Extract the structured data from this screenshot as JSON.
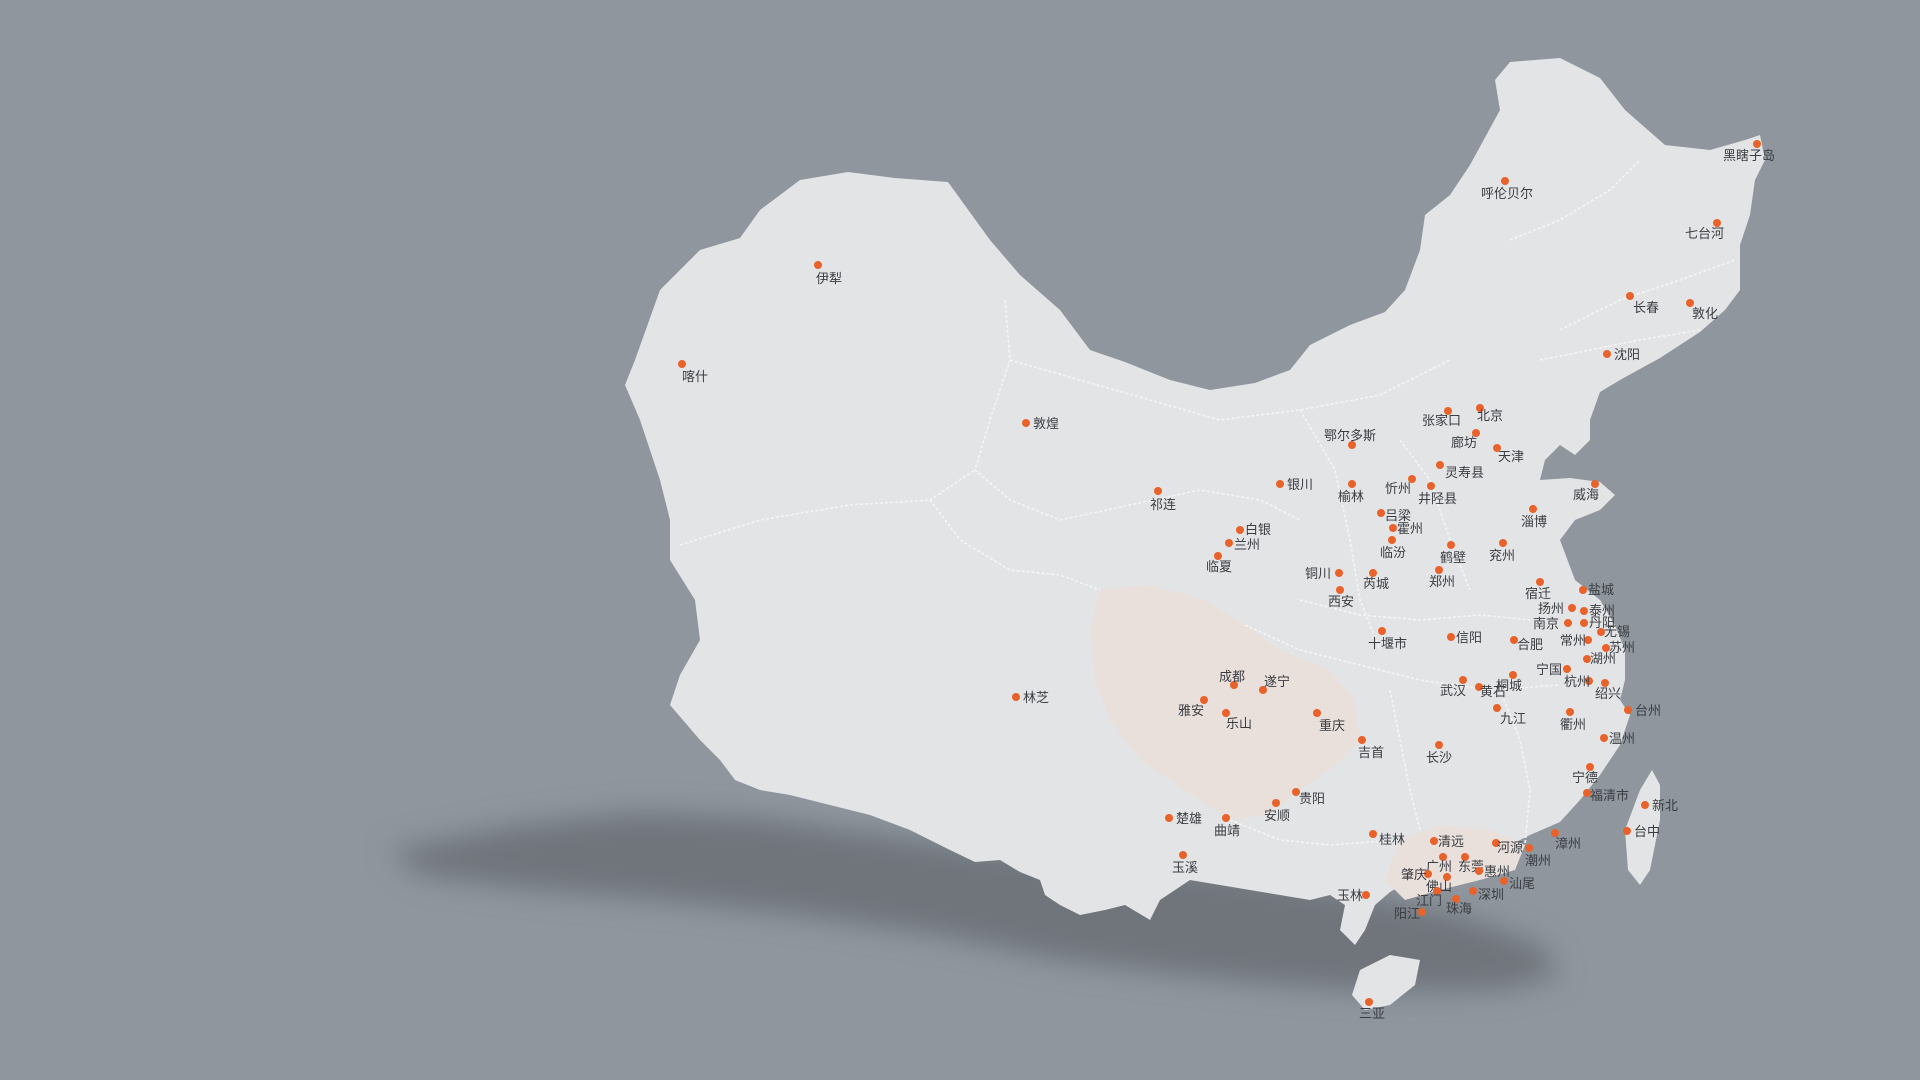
{
  "map": {
    "colors": {
      "background": "#8f969e",
      "land": "#e3e4e6",
      "border": "#f4f5f6",
      "highlight_region": "#e9dfdb",
      "shadow": "#6f747b",
      "city_dot": "#e8622a",
      "label": "#3a3d42"
    },
    "cities": [
      {
        "name": "黑瞎子岛"
      },
      {
        "name": "呼伦贝尔"
      },
      {
        "name": "七台河"
      },
      {
        "name": "长春"
      },
      {
        "name": "敦化"
      },
      {
        "name": "沈阳"
      },
      {
        "name": "伊犁"
      },
      {
        "name": "喀什"
      },
      {
        "name": "敦煌"
      },
      {
        "name": "张家口"
      },
      {
        "name": "北京"
      },
      {
        "name": "鄂尔多斯"
      },
      {
        "name": "廊坊"
      },
      {
        "name": "天津"
      },
      {
        "name": "灵寿县"
      },
      {
        "name": "银川"
      },
      {
        "name": "榆林"
      },
      {
        "name": "忻州"
      },
      {
        "name": "井陉县"
      },
      {
        "name": "威海"
      },
      {
        "name": "祁连"
      },
      {
        "name": "吕梁"
      },
      {
        "name": "淄博"
      },
      {
        "name": "霍州"
      },
      {
        "name": "白银"
      },
      {
        "name": "兰州"
      },
      {
        "name": "临汾"
      },
      {
        "name": "鹤壁"
      },
      {
        "name": "兖州"
      },
      {
        "name": "临夏"
      },
      {
        "name": "铜川"
      },
      {
        "name": "芮城"
      },
      {
        "name": "郑州"
      },
      {
        "name": "宿迁"
      },
      {
        "name": "盐城"
      },
      {
        "name": "西安"
      },
      {
        "name": "扬州"
      },
      {
        "name": "泰州"
      },
      {
        "name": "南京"
      },
      {
        "name": "丹阳"
      },
      {
        "name": "无锡"
      },
      {
        "name": "十堰市"
      },
      {
        "name": "信阳"
      },
      {
        "name": "常州"
      },
      {
        "name": "苏州"
      },
      {
        "name": "合肥"
      },
      {
        "name": "湖州"
      },
      {
        "name": "宁国"
      },
      {
        "name": "成都"
      },
      {
        "name": "遂宁"
      },
      {
        "name": "桐城"
      },
      {
        "name": "杭州"
      },
      {
        "name": "武汉"
      },
      {
        "name": "黄石"
      },
      {
        "name": "绍兴"
      },
      {
        "name": "林芝"
      },
      {
        "name": "雅安"
      },
      {
        "name": "九江"
      },
      {
        "name": "台州"
      },
      {
        "name": "乐山"
      },
      {
        "name": "重庆"
      },
      {
        "name": "衢州"
      },
      {
        "name": "温州"
      },
      {
        "name": "吉首"
      },
      {
        "name": "长沙"
      },
      {
        "name": "宁德"
      },
      {
        "name": "福清市"
      },
      {
        "name": "新北"
      },
      {
        "name": "贵阳"
      },
      {
        "name": "楚雄"
      },
      {
        "name": "安顺"
      },
      {
        "name": "台中"
      },
      {
        "name": "曲靖"
      },
      {
        "name": "桂林"
      },
      {
        "name": "清远"
      },
      {
        "name": "漳州"
      },
      {
        "name": "河源"
      },
      {
        "name": "潮州"
      },
      {
        "name": "广州"
      },
      {
        "name": "东莞"
      },
      {
        "name": "玉溪"
      },
      {
        "name": "肇庆"
      },
      {
        "name": "惠州"
      },
      {
        "name": "佛山"
      },
      {
        "name": "汕尾"
      },
      {
        "name": "玉林"
      },
      {
        "name": "江门"
      },
      {
        "name": "深圳"
      },
      {
        "name": "珠海"
      },
      {
        "name": "阳江"
      },
      {
        "name": "三亚"
      }
    ]
  }
}
